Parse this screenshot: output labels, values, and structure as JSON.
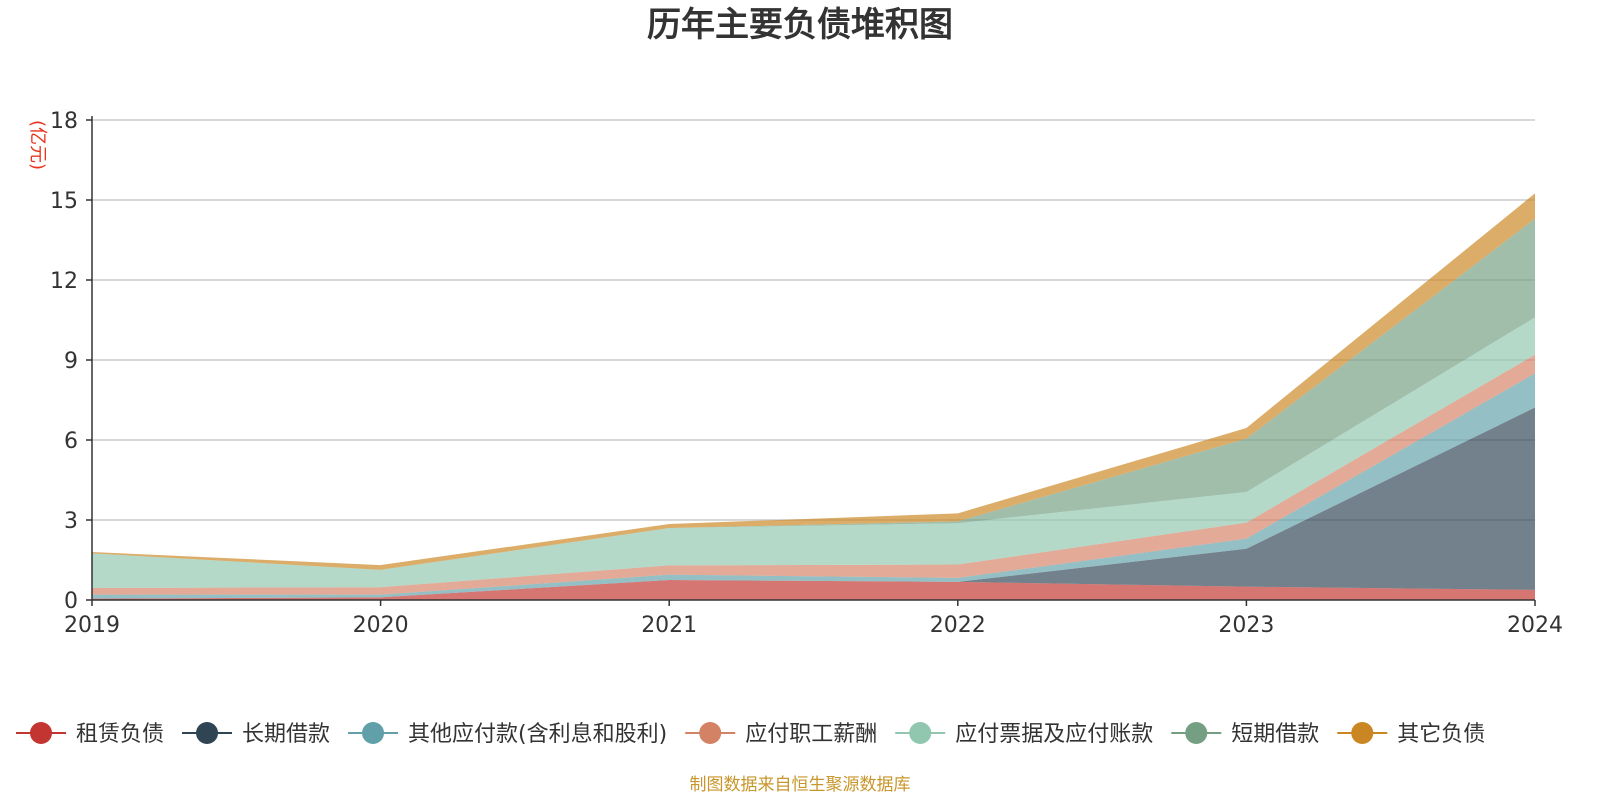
{
  "chart_data": {
    "type": "area",
    "stacked": true,
    "title": "历年主要负债堆积图",
    "ylabel": "(亿元)",
    "xlabel": "",
    "categories": [
      "2019",
      "2020",
      "2021",
      "2022",
      "2023",
      "2024"
    ],
    "ylim": [
      0,
      18
    ],
    "yticks": [
      0,
      3,
      6,
      9,
      12,
      15,
      18
    ],
    "grid": true,
    "legend_position": "bottom",
    "series": [
      {
        "name": "租赁负债",
        "color": "#c23531",
        "values": [
          0.05,
          0.1,
          0.75,
          0.68,
          0.5,
          0.38
        ]
      },
      {
        "name": "长期借款",
        "color": "#2f4554",
        "values": [
          0.0,
          0.0,
          0.0,
          0.0,
          1.42,
          6.84
        ]
      },
      {
        "name": "其他应付款(含利息和股利)",
        "color": "#61a0a8",
        "values": [
          0.15,
          0.1,
          0.2,
          0.15,
          0.38,
          1.28
        ]
      },
      {
        "name": "应付职工薪酬",
        "color": "#d48265",
        "values": [
          0.25,
          0.28,
          0.35,
          0.5,
          0.6,
          0.7
        ]
      },
      {
        "name": "应付票据及应付账款",
        "color": "#91c7ae",
        "values": [
          1.3,
          0.65,
          1.4,
          1.55,
          1.15,
          1.4
        ]
      },
      {
        "name": "短期借款",
        "color": "#749f83",
        "values": [
          0.0,
          0.0,
          0.0,
          0.07,
          2.0,
          3.7
        ]
      },
      {
        "name": "其它负债",
        "color": "#ca8622",
        "values": [
          0.05,
          0.18,
          0.15,
          0.3,
          0.4,
          0.95
        ]
      }
    ]
  },
  "footer": {
    "source": "制图数据来自恒生聚源数据库"
  }
}
